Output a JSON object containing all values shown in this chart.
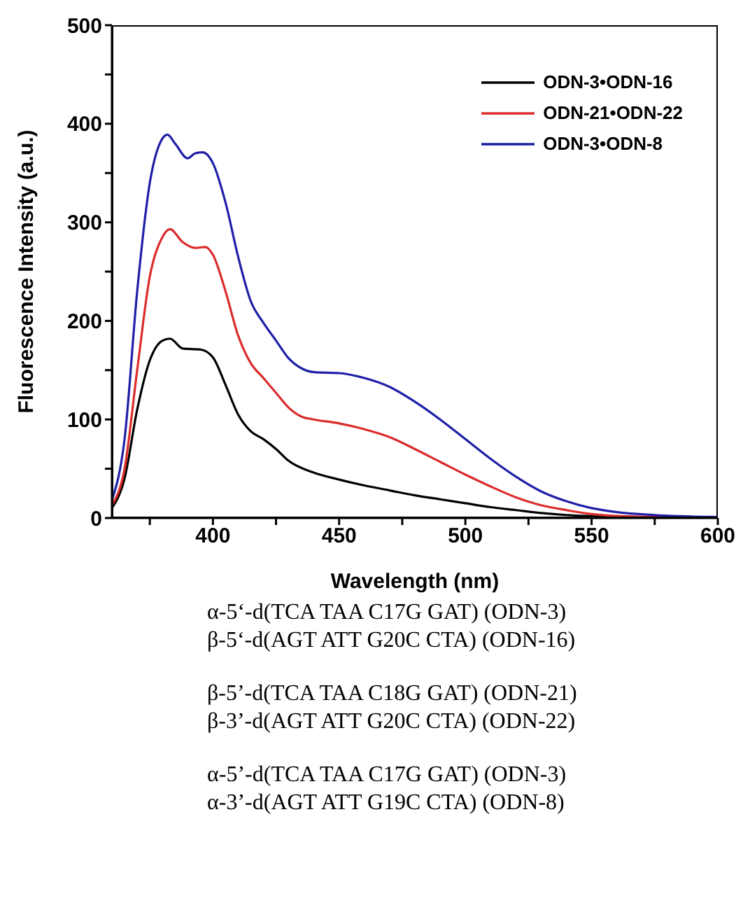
{
  "chart_data": {
    "type": "line",
    "xlabel": "Wavelength (nm)",
    "ylabel": "Fluorescence Intensity (a.u.)",
    "xlim": [
      360,
      600
    ],
    "xticks": [
      {
        "value": 375,
        "label": null
      },
      400,
      {
        "value": 425,
        "label": null
      },
      450,
      {
        "value": 475,
        "label": null
      },
      500,
      {
        "value": 525,
        "label": null
      },
      550,
      {
        "value": 575,
        "label": null
      },
      600
    ],
    "ylim": [
      0,
      500
    ],
    "yticks": [
      0,
      {
        "value": 50,
        "label": null
      },
      100,
      {
        "value": 150,
        "label": null
      },
      200,
      {
        "value": 250,
        "label": null
      },
      300,
      {
        "value": 350,
        "label": null
      },
      400,
      {
        "value": 450,
        "label": null
      },
      500
    ],
    "grid": false,
    "legend": "top right",
    "marker": "none",
    "line_style": "solid",
    "series": [
      {
        "name": "ODN-3•ODN-16",
        "color": "#000000",
        "x": [
          360,
          365,
          370,
          375,
          380,
          383,
          388,
          395,
          400,
          405,
          410,
          415,
          420,
          425,
          430,
          440,
          450,
          460,
          470,
          480,
          490,
          500,
          510,
          520,
          530,
          540,
          550,
          575,
          600
        ],
        "values": [
          10,
          40,
          110,
          160,
          180,
          182,
          172,
          171,
          163,
          135,
          105,
          88,
          80,
          70,
          58,
          46,
          39,
          33,
          28,
          23,
          19,
          15,
          11,
          8,
          5,
          3,
          2,
          1,
          0
        ]
      },
      {
        "name": "ODN-21•ODN-22",
        "color": "#dc2b2b",
        "x": [
          360,
          365,
          370,
          375,
          380,
          383,
          388,
          393,
          397,
          400,
          405,
          410,
          415,
          420,
          425,
          430,
          435,
          440,
          450,
          460,
          470,
          480,
          490,
          500,
          510,
          520,
          530,
          540,
          550,
          560,
          575,
          600
        ],
        "values": [
          13,
          50,
          150,
          245,
          285,
          293,
          280,
          274,
          275,
          267,
          230,
          185,
          157,
          142,
          127,
          112,
          103,
          100,
          96,
          90,
          82,
          70,
          57,
          44,
          32,
          21,
          13,
          8,
          4,
          2,
          1,
          0
        ]
      },
      {
        "name": "ODN-3•ODN-8",
        "color": "#1f1fa8",
        "x": [
          360,
          365,
          370,
          375,
          380,
          382,
          385,
          390,
          393,
          396,
          400,
          405,
          410,
          415,
          420,
          425,
          430,
          435,
          440,
          450,
          460,
          470,
          480,
          490,
          500,
          510,
          520,
          530,
          540,
          550,
          560,
          575,
          600
        ],
        "values": [
          18,
          80,
          230,
          340,
          385,
          389,
          380,
          365,
          370,
          371,
          360,
          320,
          265,
          220,
          198,
          180,
          162,
          152,
          148,
          147,
          142,
          133,
          118,
          100,
          80,
          60,
          42,
          27,
          17,
          10,
          6,
          3,
          1
        ]
      }
    ],
    "annotations": [
      "α-5‘-d(TCA TAA C17G GAT) (ODN-3)",
      "β-5‘-d(AGT ATT G20C CTA) (ODN-16)",
      "β-5’-d(TCA TAA C18G GAT) (ODN-21)",
      "β-3’-d(AGT ATT G20C CTA) (ODN-22)",
      "α-5’-d(TCA TAA C17G GAT) (ODN-3)",
      "α-3’-d(AGT ATT G19C CTA) (ODN-8)"
    ]
  }
}
